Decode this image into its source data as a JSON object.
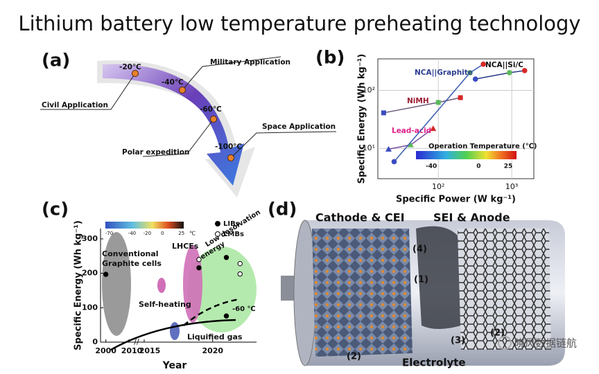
{
  "title": "Lithium battery low temperature preheating technology",
  "panel_a": {
    "label": "(a)",
    "temperatures": [
      "-20℃",
      "-40℃",
      "-60℃",
      "-100℃"
    ],
    "applications": [
      "Civil Application",
      "Military Application",
      "Polar expedition",
      "Space Application"
    ]
  },
  "chart_data": [
    {
      "type": "line",
      "panel_label": "(b)",
      "x_label": "Specific Power (W kg⁻¹)",
      "y_label": "Specific Energy (Wh kg⁻¹)",
      "log_x": true,
      "log_y": true,
      "xlim": [
        15,
        2000
      ],
      "ylim": [
        3,
        350
      ],
      "xticks": [
        {
          "value": 100,
          "label": "10²"
        },
        {
          "value": 1000,
          "label": "10³"
        }
      ],
      "yticks": [
        {
          "value": 10,
          "label": "10¹"
        },
        {
          "value": 100,
          "label": "10²"
        }
      ],
      "grid": true,
      "series": [
        {
          "name": "NiMH",
          "color": "#9b1c31",
          "line_color": "#6b5a7a",
          "x": [
            18,
            100,
            200
          ],
          "values": [
            41,
            62,
            75
          ],
          "marker": "square",
          "marker_colors": [
            "#3b4cc0",
            "#5cb85c",
            "#d62728"
          ]
        },
        {
          "name": "Lead-acid",
          "color": "#e0218a",
          "line_color": "#7b4fa0",
          "x": [
            21,
            42,
            85
          ],
          "values": [
            9.7,
            11.5,
            22
          ],
          "marker": "triangle",
          "marker_colors": [
            "#3b4cc0",
            "#5cb85c",
            "#d62728"
          ]
        },
        {
          "name": "NCA||Graphite",
          "color": "#2c3e91",
          "line_color": "#3a5bb0",
          "x": [
            25,
            270,
            410
          ],
          "values": [
            5.9,
            202,
            283
          ],
          "marker": "circle",
          "marker_colors": [
            "#3b4cc0",
            "#5cb85c",
            "#d62728"
          ]
        },
        {
          "name": "NCA||Si/C",
          "color": "#111111",
          "line_color": "#2a3a8a",
          "x": [
            320,
            930,
            1500
          ],
          "values": [
            157,
            202,
            220
          ],
          "marker": "circle",
          "marker_colors": [
            "#3b4cc0",
            "#5cb85c",
            "#d62728"
          ]
        }
      ],
      "colorbar": {
        "title": "Operation Temperature (℃)",
        "lim": [
          -53,
          32
        ],
        "ticks": [
          -40,
          0,
          25
        ]
      }
    },
    {
      "type": "scatter",
      "panel_label": "(c)",
      "x_label": "Year",
      "y_label": "Specific Energy (Wh kg⁻¹)",
      "axis_break": true,
      "xlim": [
        1998,
        2023
      ],
      "ylim": [
        0,
        330
      ],
      "xticks": [
        2000,
        2010,
        2015,
        2020
      ],
      "yticks": [
        0,
        100,
        200,
        300
      ],
      "series": [
        {
          "name": "LIBs",
          "color": "#000000",
          "filled": true,
          "x": [
            2000,
            2019,
            2021,
            2021
          ],
          "values": [
            197,
            216,
            246,
            76
          ]
        },
        {
          "name": "LMBs",
          "color": "#000000",
          "filled": false,
          "x": [
            2022,
            2022,
            2019
          ],
          "values": [
            228,
            198,
            240
          ]
        }
      ],
      "colorbar": {
        "lim": [
          -75,
          28
        ],
        "ticks": [
          -70,
          -40,
          -20,
          0,
          25
        ],
        "unit": "℃"
      },
      "annotations": {
        "graphite": [
          "Conventional",
          "Graphite cells"
        ],
        "lhce": "LHCEs",
        "desolvation": [
          "Low desolvation",
          "energy"
        ],
        "self_heating": "Self-heating",
        "liquified": "Liquified gas",
        "temp": "-60 ℃"
      }
    }
  ],
  "panel_d": {
    "label": "(d)",
    "cathode": "Cathode & CEI",
    "anode": "SEI & Anode",
    "numbers": [
      "(4)",
      "(1)",
      "(3)",
      "(2)",
      "(2)"
    ],
    "electrolyte": "Electrolyte"
  },
  "watermark": "晓风数据链航"
}
